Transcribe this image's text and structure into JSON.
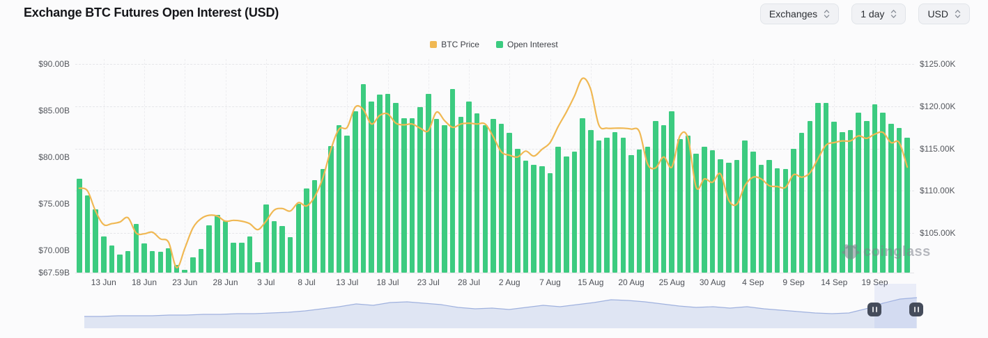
{
  "header": {
    "title": "Exchange BTC Futures Open Interest (USD)",
    "controls": [
      {
        "label": "Exchanges"
      },
      {
        "label": "1 day"
      },
      {
        "label": "USD"
      }
    ]
  },
  "legend": {
    "items": [
      {
        "label": "BTC Price",
        "color": "#F0B853"
      },
      {
        "label": "Open Interest",
        "color": "#3CCB80"
      }
    ]
  },
  "watermark": {
    "label": "coinglass"
  },
  "chart_data": {
    "type": "combo-bar-line",
    "title": "Exchange BTC Futures Open Interest (USD)",
    "grid": true,
    "legend_position": "top-center",
    "categories": [
      "10 Jun",
      "11 Jun",
      "12 Jun",
      "13 Jun",
      "14 Jun",
      "15 Jun",
      "16 Jun",
      "17 Jun",
      "18 Jun",
      "19 Jun",
      "20 Jun",
      "21 Jun",
      "22 Jun",
      "23 Jun",
      "24 Jun",
      "25 Jun",
      "26 Jun",
      "27 Jun",
      "28 Jun",
      "29 Jun",
      "30 Jun",
      "1 Jul",
      "2 Jul",
      "3 Jul",
      "4 Jul",
      "5 Jul",
      "6 Jul",
      "7 Jul",
      "8 Jul",
      "9 Jul",
      "10 Jul",
      "11 Jul",
      "12 Jul",
      "13 Jul",
      "14 Jul",
      "15 Jul",
      "16 Jul",
      "17 Jul",
      "18 Jul",
      "19 Jul",
      "20 Jul",
      "21 Jul",
      "22 Jul",
      "23 Jul",
      "24 Jul",
      "25 Jul",
      "26 Jul",
      "27 Jul",
      "28 Jul",
      "29 Jul",
      "30 Jul",
      "31 Jul",
      "1 Aug",
      "2 Aug",
      "3 Aug",
      "4 Aug",
      "5 Aug",
      "6 Aug",
      "7 Aug",
      "8 Aug",
      "10 Aug",
      "12 Aug",
      "14 Aug",
      "15 Aug",
      "16 Aug",
      "17 Aug",
      "18 Aug",
      "19 Aug",
      "20 Aug",
      "21 Aug",
      "22 Aug",
      "23 Aug",
      "24 Aug",
      "25 Aug",
      "26 Aug",
      "27 Aug",
      "28 Aug",
      "29 Aug",
      "30 Aug",
      "31 Aug",
      "1 Sep",
      "2 Sep",
      "3 Sep",
      "4 Sep",
      "5 Sep",
      "6 Sep",
      "7 Sep",
      "8 Sep",
      "9 Sep",
      "10 Sep",
      "11 Sep",
      "12 Sep",
      "13 Sep",
      "14 Sep",
      "15 Sep",
      "16 Sep",
      "17 Sep",
      "18 Sep",
      "19 Sep",
      "20 Sep",
      "21 Sep",
      "22 Sep",
      "23 Sep"
    ],
    "series": [
      {
        "name": "Open Interest",
        "type": "bar",
        "axis": "left",
        "unit": "USD billions",
        "color": "#3CCB80",
        "values": [
          77.7,
          75.9,
          74.4,
          71.5,
          70.5,
          69.5,
          69.9,
          72.8,
          70.7,
          69.9,
          69.8,
          70.2,
          68.4,
          67.9,
          69.2,
          70.1,
          72.7,
          73.8,
          73.1,
          70.8,
          70.8,
          71.5,
          68.7,
          74.9,
          73.1,
          72.6,
          71.4,
          75.0,
          76.6,
          77.5,
          78.7,
          81.2,
          83.4,
          82.3,
          84.9,
          87.8,
          86.0,
          86.7,
          86.8,
          85.8,
          84.2,
          84.2,
          85.4,
          86.8,
          84.1,
          83.4,
          87.3,
          84.3,
          86.0,
          84.7,
          83.4,
          84.1,
          83.6,
          82.6,
          80.9,
          79.6,
          79.2,
          79.0,
          78.3,
          81.1,
          80.1,
          80.6,
          84.2,
          82.9,
          81.8,
          82.1,
          82.7,
          82.1,
          80.2,
          80.8,
          81.1,
          83.9,
          83.4,
          84.9,
          81.9,
          82.3,
          80.4,
          81.1,
          80.7,
          79.8,
          79.4,
          79.7,
          81.8,
          80.6,
          79.2,
          79.7,
          78.8,
          78.7,
          80.9,
          82.6,
          83.9,
          85.8,
          85.8,
          83.8,
          82.7,
          82.9,
          84.8,
          83.9,
          85.7,
          84.8,
          83.6,
          83.1,
          82.1
        ]
      },
      {
        "name": "BTC Price",
        "type": "line",
        "axis": "right",
        "unit": "USD thousands",
        "color": "#F0B853",
        "values": [
          110.3,
          110.0,
          107.6,
          106.0,
          106.1,
          106.3,
          106.8,
          105.0,
          104.9,
          105.1,
          104.3,
          103.9,
          100.9,
          103.2,
          105.6,
          106.7,
          107.1,
          107.0,
          106.4,
          106.5,
          106.4,
          106.1,
          105.4,
          106.4,
          107.7,
          107.9,
          107.6,
          108.6,
          108.2,
          109.3,
          111.5,
          114.9,
          117.3,
          117.5,
          119.9,
          119.6,
          117.9,
          118.9,
          119.1,
          118.0,
          117.8,
          117.9,
          117.4,
          117.1,
          119.3,
          118.3,
          117.5,
          117.9,
          118.0,
          117.9,
          117.9,
          116.4,
          114.6,
          114.2,
          114.0,
          114.7,
          114.1,
          114.9,
          115.7,
          117.6,
          119.3,
          121.2,
          123.3,
          122.0,
          117.8,
          117.4,
          117.4,
          117.4,
          117.3,
          117.0,
          113.2,
          112.7,
          114.0,
          112.8,
          116.5,
          116.2,
          110.4,
          111.4,
          111.0,
          112.0,
          108.9,
          108.4,
          110.6,
          111.6,
          111.4,
          110.6,
          110.5,
          110.4,
          111.9,
          111.6,
          112.1,
          113.8,
          115.4,
          115.7,
          115.9,
          115.9,
          116.5,
          116.2,
          116.7,
          116.9,
          115.7,
          115.7,
          112.8
        ]
      }
    ],
    "left_axis": {
      "tick_labels": [
        "$90.00B",
        "$85.00B",
        "$80.00B",
        "$75.00B",
        "$70.00B",
        "$67.59B"
      ],
      "tick_values": [
        90,
        85,
        80,
        75,
        70,
        67.59
      ],
      "min": 67.59,
      "max": 90
    },
    "right_axis": {
      "tick_labels": [
        "$125.00K",
        "$120.00K",
        "$115.00K",
        "$110.00K",
        "$105.00K"
      ],
      "tick_values": [
        125,
        120,
        115,
        110,
        105
      ],
      "min": 100.31,
      "max": 125
    },
    "x_axis": {
      "tick_labels": [
        "13 Jun",
        "18 Jun",
        "23 Jun",
        "28 Jun",
        "3 Jul",
        "8 Jul",
        "13 Jul",
        "18 Jul",
        "23 Jul",
        "28 Jul",
        "2 Aug",
        "7 Aug",
        "15 Aug",
        "20 Aug",
        "25 Aug",
        "30 Aug",
        "4 Sep",
        "9 Sep",
        "14 Sep",
        "19 Sep"
      ],
      "tick_indices": [
        3,
        8,
        13,
        18,
        23,
        28,
        33,
        38,
        43,
        48,
        53,
        58,
        63,
        68,
        73,
        78,
        83,
        88,
        93,
        98
      ]
    }
  },
  "navigator": {
    "heights": [
      17,
      17,
      18,
      18,
      18,
      19,
      19,
      20,
      20,
      21,
      21,
      22,
      23,
      25,
      28,
      31,
      35,
      33,
      37,
      38,
      36,
      34,
      30,
      28,
      29,
      27,
      30,
      33,
      31,
      34,
      37,
      41,
      40,
      38,
      35,
      32,
      30,
      31,
      29,
      31,
      28,
      26,
      24,
      22,
      21,
      22,
      28,
      36,
      42,
      44
    ]
  }
}
